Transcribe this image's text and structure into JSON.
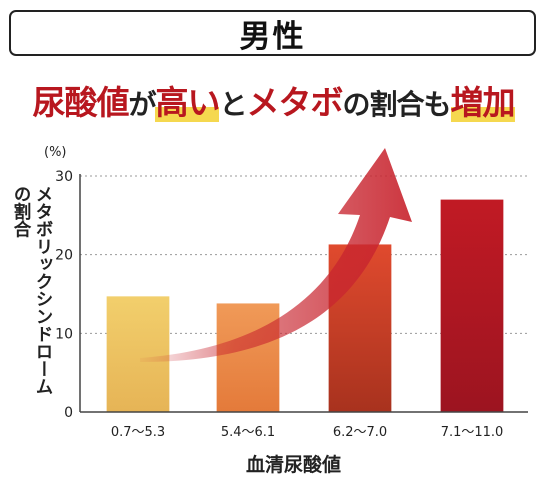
{
  "header": {
    "title": "男性"
  },
  "headline": {
    "part1": "尿酸値",
    "part2": "が",
    "part3": "高い",
    "part4": "と",
    "part5": "メタボ",
    "part6": "の割合も",
    "part7": "増加"
  },
  "colors": {
    "headline_red": "#b8171f",
    "highlight": "#f5d84f",
    "arrow": "#c8252f"
  },
  "chart_data": {
    "type": "bar",
    "title": "男性",
    "unit_label": "(%)",
    "ylabel": "メタボリックシンドロームの割合",
    "xlabel": "血清尿酸値",
    "categories": [
      "0.7～5.3",
      "5.4～6.1",
      "6.2～7.0",
      "7.1～11.0"
    ],
    "values": [
      14.7,
      13.8,
      21.3,
      27.0
    ],
    "ylim": [
      0,
      30
    ],
    "yticks": [
      0,
      10,
      20,
      30
    ],
    "grid": true,
    "bar_colors": [
      [
        "#f2cf6c",
        "#e6b456"
      ],
      [
        "#f09a58",
        "#e47a3a"
      ],
      [
        "#e04a2e",
        "#a8321e"
      ],
      [
        "#c11a24",
        "#9c1420"
      ]
    ]
  }
}
